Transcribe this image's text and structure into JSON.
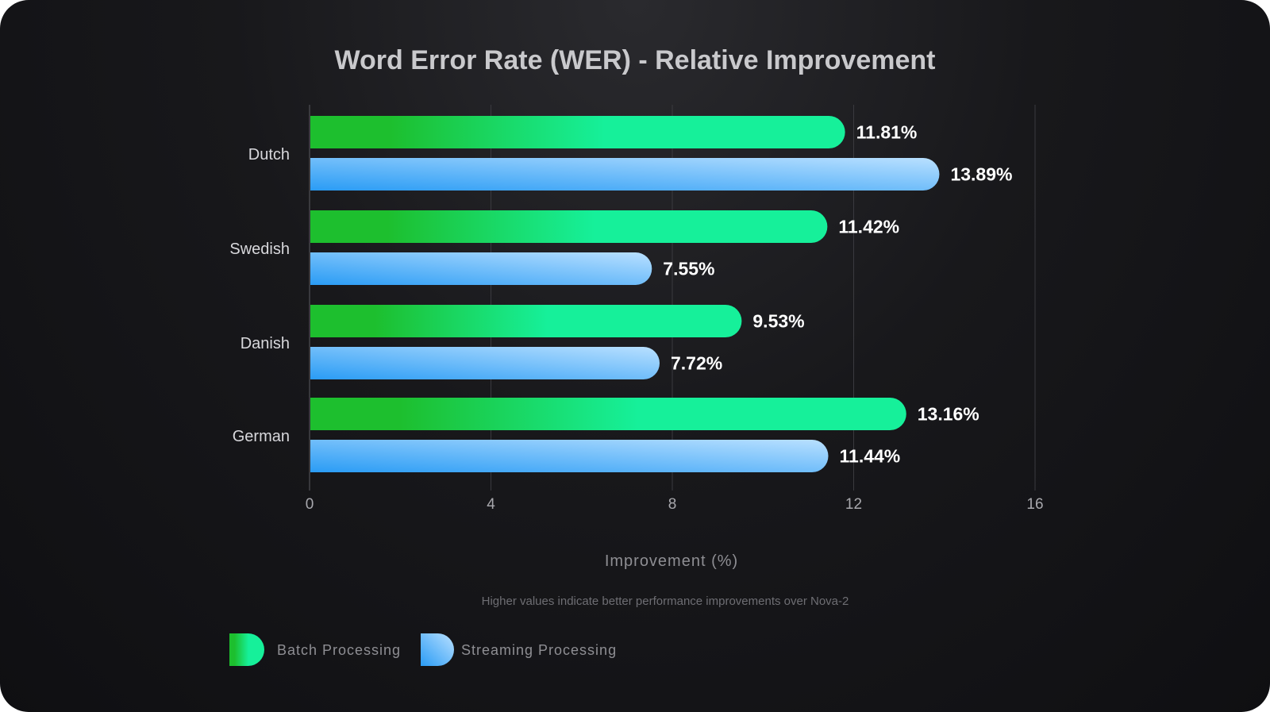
{
  "chart_data": {
    "type": "bar",
    "orientation": "horizontal",
    "title": "Word Error Rate (WER) - Relative Improvement",
    "xlabel": "Improvement (%)",
    "ylabel": "",
    "note": "Higher values indicate better performance improvements over Nova-2",
    "categories": [
      "Dutch",
      "Swedish",
      "Danish",
      "German"
    ],
    "xlim": [
      0,
      16
    ],
    "xticks": [
      0,
      4,
      8,
      12,
      16
    ],
    "grid": true,
    "legend_position": "bottom-left",
    "series": [
      {
        "name": "Batch Processing",
        "values": [
          11.81,
          11.42,
          9.53,
          13.16
        ],
        "labels": [
          "11.81%",
          "11.42%",
          "9.53%",
          "13.16%"
        ],
        "colors": [
          "#1dbf2e",
          "#16f09a"
        ]
      },
      {
        "name": "Streaming Processing",
        "values": [
          13.89,
          7.55,
          7.72,
          11.44
        ],
        "labels": [
          "13.89%",
          "7.55%",
          "7.72%",
          "11.44%"
        ],
        "colors": [
          "#2a9cf5",
          "#b9e0ff"
        ]
      }
    ]
  }
}
